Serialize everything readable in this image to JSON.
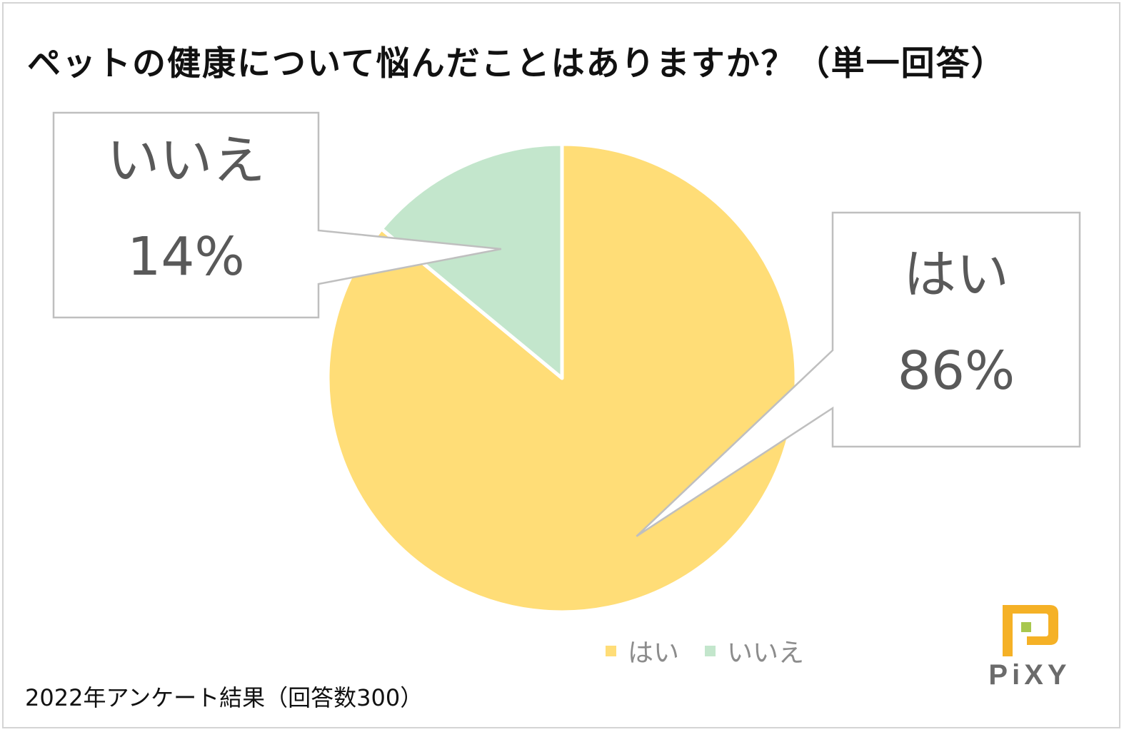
{
  "chart_data": {
    "type": "pie",
    "title": "ペットの健康について悩んだことはありますか？（単一回答）",
    "categories": [
      "はい",
      "いいえ"
    ],
    "values": [
      86,
      14
    ],
    "value_labels": [
      "86%",
      "14%"
    ],
    "colors": [
      "#ffdd77",
      "#c3e6cc"
    ],
    "start_angle": "12 o'clock",
    "direction": "clockwise",
    "legend": {
      "position": "bottom-right",
      "entries": [
        "はい",
        "いいえ"
      ]
    }
  },
  "footnote": "2022年アンケート結果（回答数300）",
  "logo": {
    "text": "PiXY",
    "icon": "pixy-logo-icon",
    "colors": [
      "#f5b126",
      "#a8c74e"
    ]
  },
  "styles": {
    "border_color": "#d4d4d4",
    "callout_border": "#bfbfbf",
    "label_color": "#595959",
    "legend_text_color": "#8c8c8c"
  }
}
